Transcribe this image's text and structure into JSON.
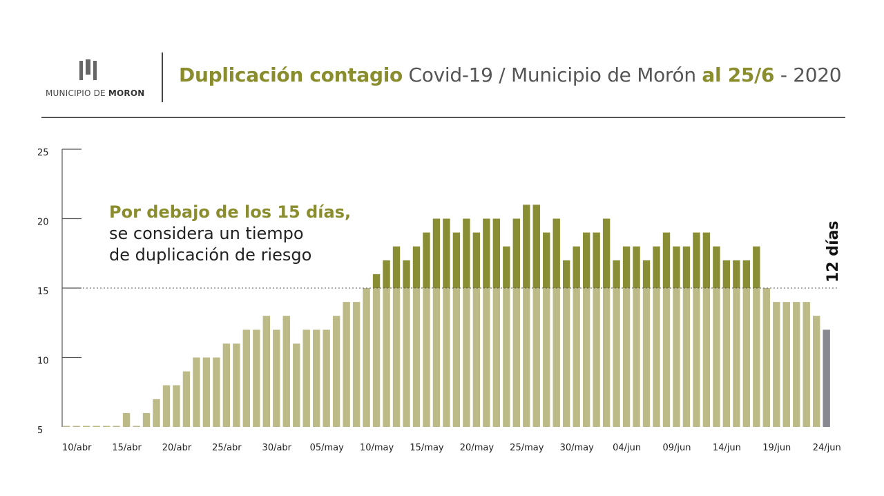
{
  "header": {
    "logo_prefix": "MUNICIPIO DE",
    "logo_bold": "MORON",
    "title_part1": "Duplicación contagio",
    "title_part2": " Covid-19 / Municipio de Morón ",
    "title_part3": "al 25/6",
    "title_part4": " - 2020"
  },
  "annotation": {
    "bold_line": "Por debajo de los 15 días,",
    "line2": "se considera un tiempo",
    "line3": "de duplicación de riesgo"
  },
  "last_value_label": "12 días",
  "colors": {
    "accent": "#8a8d2e",
    "bar_below": "#bcbb88",
    "bar_above": "#898d33",
    "bar_last": "#878890",
    "text": "#555555"
  },
  "chart_data": {
    "type": "bar",
    "title": "",
    "xlabel": "",
    "ylabel": "",
    "ylim": [
      5,
      25
    ],
    "yticks": [
      5,
      10,
      15,
      20,
      25
    ],
    "threshold": 15,
    "categories": [
      "10/abr",
      "11/abr",
      "12/abr",
      "13/abr",
      "14/abr",
      "15/abr",
      "16/abr",
      "17/abr",
      "18/abr",
      "19/abr",
      "20/abr",
      "21/abr",
      "22/abr",
      "23/abr",
      "24/abr",
      "25/abr",
      "26/abr",
      "27/abr",
      "28/abr",
      "29/abr",
      "30/abr",
      "01/may",
      "02/may",
      "03/may",
      "04/may",
      "05/may",
      "06/may",
      "07/may",
      "08/may",
      "09/may",
      "10/may",
      "11/may",
      "12/may",
      "13/may",
      "14/may",
      "15/may",
      "16/may",
      "17/may",
      "18/may",
      "19/may",
      "20/may",
      "21/may",
      "22/may",
      "23/may",
      "24/may",
      "25/may",
      "26/may",
      "27/may",
      "28/may",
      "29/may",
      "30/may",
      "31/may",
      "01/jun",
      "02/jun",
      "03/jun",
      "04/jun",
      "05/jun",
      "06/jun",
      "07/jun",
      "08/jun",
      "09/jun",
      "10/jun",
      "11/jun",
      "12/jun",
      "13/jun",
      "14/jun",
      "15/jun",
      "16/jun",
      "17/jun",
      "18/jun",
      "19/jun",
      "20/jun",
      "21/jun",
      "22/jun",
      "23/jun",
      "24/jun",
      "25/jun"
    ],
    "tick_labels": [
      "10/abr",
      "15/abr",
      "20/abr",
      "25/abr",
      "30/abr",
      "05/may",
      "10/may",
      "15/may",
      "20/may",
      "25/may",
      "30/may",
      "04/jun",
      "09/jun",
      "14/jun",
      "19/jun",
      "24/jun"
    ],
    "values": [
      5,
      5,
      5,
      5,
      5,
      5,
      6,
      5,
      6,
      7,
      8,
      8,
      9,
      10,
      10,
      10,
      11,
      11,
      12,
      12,
      13,
      12,
      13,
      11,
      12,
      12,
      12,
      13,
      14,
      14,
      15,
      16,
      17,
      18,
      17,
      18,
      19,
      20,
      20,
      19,
      20,
      19,
      20,
      20,
      18,
      20,
      21,
      21,
      19,
      20,
      17,
      18,
      19,
      19,
      20,
      17,
      18,
      18,
      17,
      18,
      19,
      18,
      18,
      19,
      19,
      18,
      17,
      17,
      17,
      18,
      15,
      14,
      14,
      14,
      14,
      13,
      12
    ]
  }
}
